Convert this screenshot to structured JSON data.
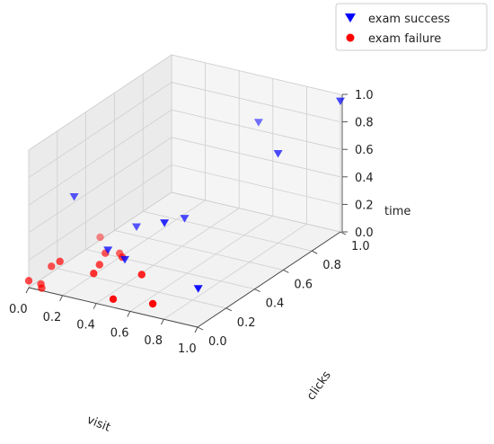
{
  "chart_data": {
    "type": "scatter",
    "projection": "3d",
    "title": "",
    "xlabel": "visit",
    "ylabel": "clicks",
    "zlabel": "time",
    "xlim": [
      0.0,
      1.0
    ],
    "ylim": [
      0.0,
      1.0
    ],
    "zlim": [
      0.0,
      1.0
    ],
    "xticks": [
      "0.0",
      "0.2",
      "0.4",
      "0.6",
      "0.8",
      "1.0"
    ],
    "yticks": [
      "0.0",
      "0.2",
      "0.4",
      "0.6",
      "0.8",
      "1.0"
    ],
    "zticks": [
      "0.0",
      "0.2",
      "0.4",
      "0.6",
      "0.8",
      "1.0"
    ],
    "grid": true,
    "legend_position": "top-right",
    "series": [
      {
        "name": "exam success",
        "marker": "triangle-down",
        "color": "#0000ff",
        "points": [
          {
            "x": 1.0,
            "y": 1.0,
            "z": 0.95
          },
          {
            "x": 0.6,
            "y": 0.9,
            "z": 0.75
          },
          {
            "x": 0.8,
            "y": 0.8,
            "z": 0.65
          },
          {
            "x": 0.1,
            "y": 0.2,
            "z": 0.55
          },
          {
            "x": 0.5,
            "y": 0.5,
            "z": 0.3
          },
          {
            "x": 0.55,
            "y": 0.3,
            "z": 0.42
          },
          {
            "x": 0.3,
            "y": 0.4,
            "z": 0.25
          },
          {
            "x": 0.3,
            "y": 0.2,
            "z": 0.22
          },
          {
            "x": 0.4,
            "y": 0.2,
            "z": 0.18
          },
          {
            "x": 0.75,
            "y": 0.3,
            "z": 0.0
          }
        ]
      },
      {
        "name": "exam failure",
        "color": "#ff0000",
        "marker": "circle",
        "points": [
          {
            "x": 0.0,
            "y": 0.5,
            "z": 0.02
          },
          {
            "x": 0.2,
            "y": 0.4,
            "z": 0.03
          },
          {
            "x": 0.1,
            "y": 0.1,
            "z": 0.15
          },
          {
            "x": 0.05,
            "y": 0.1,
            "z": 0.1
          },
          {
            "x": 0.5,
            "y": 0.2,
            "z": 0.1
          },
          {
            "x": 0.25,
            "y": 0.2,
            "z": 0.1
          },
          {
            "x": 0.3,
            "y": 0.1,
            "z": 0.12
          },
          {
            "x": 0.2,
            "y": 0.3,
            "z": 0.1
          },
          {
            "x": 0.3,
            "y": 0.3,
            "z": 0.1
          },
          {
            "x": 0.0,
            "y": 0.0,
            "z": 0.05
          },
          {
            "x": 0.03,
            "y": 0.05,
            "z": 0.0
          },
          {
            "x": 0.06,
            "y": 0.02,
            "z": 0.0
          },
          {
            "x": 0.65,
            "y": 0.1,
            "z": 0.0
          },
          {
            "x": 0.5,
            "y": 0.0,
            "z": 0.06
          }
        ]
      }
    ]
  }
}
